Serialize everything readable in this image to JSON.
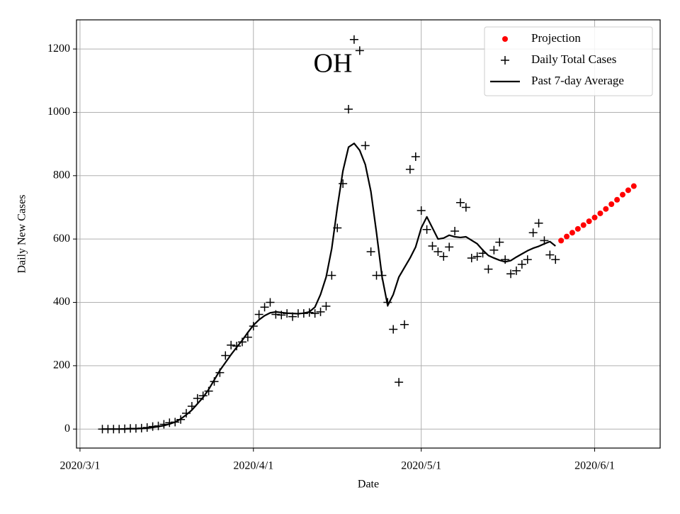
{
  "chart_data": {
    "type": "line",
    "annotation": "OH",
    "xlabel": "Date",
    "ylabel": "Daily New Cases",
    "xlim": [
      "2020-02-29T09:00Z",
      "2020-06-12T17:00Z"
    ],
    "ylim": [
      -60,
      1292
    ],
    "xticks": [
      {
        "value": "2020-03-01",
        "label": "2020/3/1"
      },
      {
        "value": "2020-04-01",
        "label": "2020/4/1"
      },
      {
        "value": "2020-05-01",
        "label": "2020/5/1"
      },
      {
        "value": "2020-06-01",
        "label": "2020/6/1"
      }
    ],
    "yticks": [
      0,
      200,
      400,
      600,
      800,
      1000,
      1200
    ],
    "grid": true,
    "legend": "upper right",
    "series": [
      {
        "name": "Projection",
        "color": "red",
        "marker": "o",
        "x": [
          "2020-05-26",
          "2020-05-27",
          "2020-05-28",
          "2020-05-29",
          "2020-05-30",
          "2020-05-31",
          "2020-06-01",
          "2020-06-02",
          "2020-06-03",
          "2020-06-04",
          "2020-06-05",
          "2020-06-06",
          "2020-06-07",
          "2020-06-08"
        ],
        "values": [
          595,
          608,
          620,
          632,
          644,
          656,
          668,
          681,
          695,
          710,
          724,
          740,
          754,
          767
        ]
      },
      {
        "name": "Daily Total Cases",
        "color": "black",
        "marker": "+",
        "x": [
          "2020-03-05",
          "2020-03-06",
          "2020-03-07",
          "2020-03-08",
          "2020-03-09",
          "2020-03-10",
          "2020-03-11",
          "2020-03-12",
          "2020-03-13",
          "2020-03-14",
          "2020-03-15",
          "2020-03-16",
          "2020-03-17",
          "2020-03-18",
          "2020-03-19",
          "2020-03-20",
          "2020-03-21",
          "2020-03-22",
          "2020-03-23",
          "2020-03-24",
          "2020-03-25",
          "2020-03-26",
          "2020-03-27",
          "2020-03-28",
          "2020-03-29",
          "2020-03-30",
          "2020-03-31",
          "2020-04-01",
          "2020-04-02",
          "2020-04-03",
          "2020-04-04",
          "2020-04-05",
          "2020-04-06",
          "2020-04-07",
          "2020-04-08",
          "2020-04-09",
          "2020-04-10",
          "2020-04-11",
          "2020-04-12",
          "2020-04-13",
          "2020-04-14",
          "2020-04-15",
          "2020-04-16",
          "2020-04-17",
          "2020-04-18",
          "2020-04-19",
          "2020-04-20",
          "2020-04-21",
          "2020-04-22",
          "2020-04-23",
          "2020-04-24",
          "2020-04-25",
          "2020-04-26",
          "2020-04-27",
          "2020-04-28",
          "2020-04-29",
          "2020-04-30",
          "2020-05-01",
          "2020-05-02",
          "2020-05-03",
          "2020-05-04",
          "2020-05-05",
          "2020-05-06",
          "2020-05-07",
          "2020-05-08",
          "2020-05-09",
          "2020-05-10",
          "2020-05-11",
          "2020-05-12",
          "2020-05-13",
          "2020-05-14",
          "2020-05-15",
          "2020-05-16",
          "2020-05-17",
          "2020-05-18",
          "2020-05-19",
          "2020-05-20",
          "2020-05-21",
          "2020-05-22",
          "2020-05-23",
          "2020-05-24",
          "2020-05-25"
        ],
        "values": [
          0,
          0,
          0,
          0,
          1,
          2,
          2,
          3,
          5,
          8,
          10,
          15,
          20,
          22,
          30,
          50,
          72,
          97,
          105,
          120,
          150,
          178,
          232,
          265,
          262,
          275,
          290,
          325,
          362,
          385,
          400,
          362,
          360,
          365,
          355,
          365,
          365,
          368,
          365,
          370,
          388,
          485,
          635,
          775,
          1010,
          1230,
          1195,
          895,
          560,
          485,
          485,
          400,
          315,
          148,
          330,
          820,
          860,
          690,
          630,
          578,
          560,
          545,
          575,
          625,
          715,
          700,
          540,
          545,
          555,
          505,
          565,
          590,
          535,
          490,
          500,
          520,
          535,
          620,
          650,
          595,
          550,
          535
        ]
      },
      {
        "name": "Past 7-day Average",
        "color": "black",
        "x": [
          "2020-03-05",
          "2020-03-06",
          "2020-03-07",
          "2020-03-08",
          "2020-03-09",
          "2020-03-10",
          "2020-03-11",
          "2020-03-12",
          "2020-03-13",
          "2020-03-14",
          "2020-03-15",
          "2020-03-16",
          "2020-03-17",
          "2020-03-18",
          "2020-03-19",
          "2020-03-20",
          "2020-03-21",
          "2020-03-22",
          "2020-03-23",
          "2020-03-24",
          "2020-03-25",
          "2020-03-26",
          "2020-03-27",
          "2020-03-28",
          "2020-03-29",
          "2020-03-30",
          "2020-03-31",
          "2020-04-01",
          "2020-04-02",
          "2020-04-03",
          "2020-04-04",
          "2020-04-05",
          "2020-04-06",
          "2020-04-07",
          "2020-04-08",
          "2020-04-09",
          "2020-04-10",
          "2020-04-11",
          "2020-04-12",
          "2020-04-13",
          "2020-04-14",
          "2020-04-15",
          "2020-04-16",
          "2020-04-17",
          "2020-04-18",
          "2020-04-19",
          "2020-04-20",
          "2020-04-21",
          "2020-04-22",
          "2020-04-23",
          "2020-04-24",
          "2020-04-25",
          "2020-04-26",
          "2020-04-27",
          "2020-04-28",
          "2020-04-29",
          "2020-04-30",
          "2020-05-01",
          "2020-05-02",
          "2020-05-03",
          "2020-05-04",
          "2020-05-05",
          "2020-05-06",
          "2020-05-07",
          "2020-05-08",
          "2020-05-09",
          "2020-05-10",
          "2020-05-11",
          "2020-05-12",
          "2020-05-13",
          "2020-05-14",
          "2020-05-15",
          "2020-05-16",
          "2020-05-17",
          "2020-05-18",
          "2020-05-19",
          "2020-05-20",
          "2020-05-21",
          "2020-05-22",
          "2020-05-23",
          "2020-05-24",
          "2020-05-25"
        ],
        "values": [
          0,
          0,
          0,
          0,
          0,
          1,
          1,
          2,
          3,
          5,
          8,
          11,
          16,
          22,
          32,
          45,
          60,
          80,
          100,
          125,
          155,
          185,
          210,
          235,
          258,
          280,
          305,
          328,
          345,
          358,
          367,
          370,
          368,
          366,
          365,
          364,
          366,
          370,
          385,
          425,
          480,
          570,
          700,
          815,
          890,
          902,
          880,
          835,
          750,
          620,
          480,
          390,
          425,
          480,
          510,
          540,
          575,
          635,
          670,
          635,
          600,
          603,
          612,
          607,
          605,
          607,
          596,
          585,
          565,
          548,
          540,
          533,
          528,
          532,
          543,
          553,
          563,
          571,
          577,
          585,
          592,
          578
        ]
      }
    ]
  }
}
